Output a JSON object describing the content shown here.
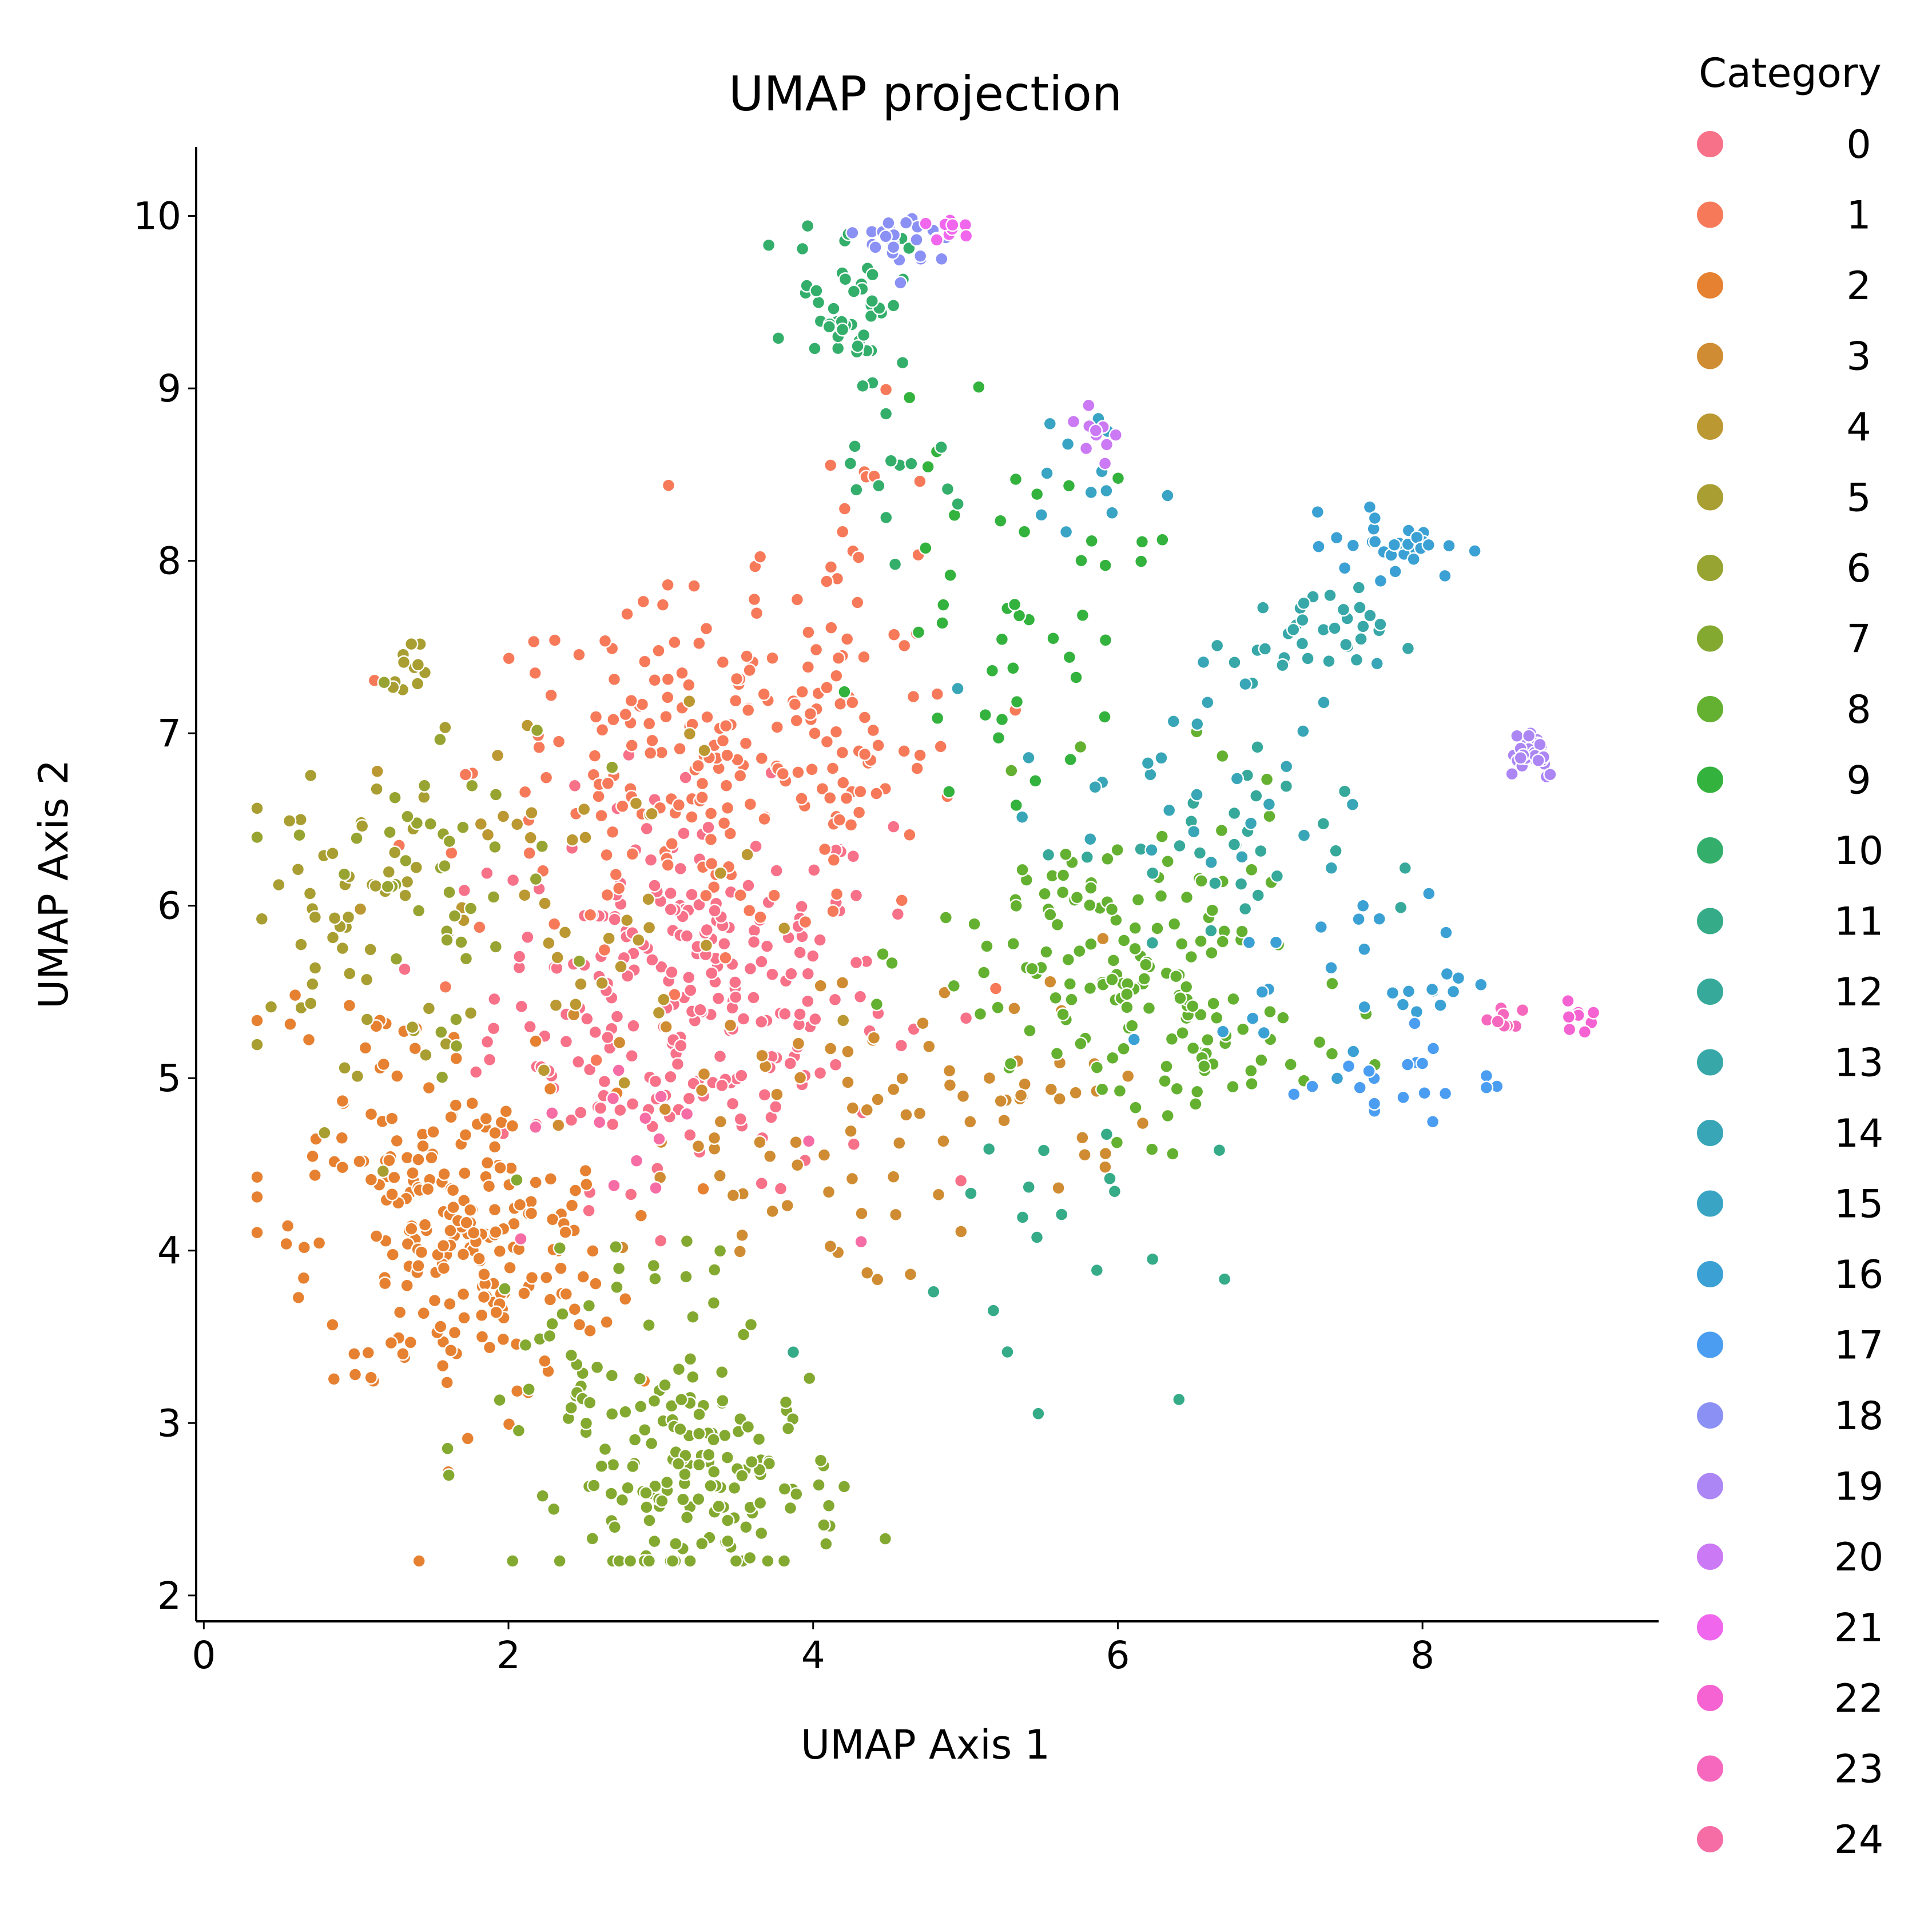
{
  "chart_data": {
    "type": "scatter",
    "title": "UMAP projection",
    "xlabel": "UMAP Axis 1",
    "ylabel": "UMAP Axis 2",
    "xlim": [
      -0.05,
      9.55
    ],
    "ylim": [
      1.85,
      10.4
    ],
    "xticks": [
      0,
      2,
      4,
      6,
      8
    ],
    "yticks": [
      2,
      3,
      4,
      5,
      6,
      7,
      8,
      9,
      10
    ],
    "grid": false,
    "legend": {
      "title": "Category",
      "placement": "right",
      "entries": [
        "0",
        "1",
        "2",
        "3",
        "4",
        "5",
        "6",
        "7",
        "8",
        "9",
        "10",
        "11",
        "12",
        "13",
        "14",
        "15",
        "16",
        "17",
        "18",
        "19",
        "20",
        "21",
        "22",
        "23",
        "24"
      ]
    },
    "colors": [
      "#f77189",
      "#f67a5a",
      "#e68132",
      "#d08c32",
      "#bb9832",
      "#a89e31",
      "#97a431",
      "#84a931",
      "#64b131",
      "#33b23d",
      "#34ae6b",
      "#35ab88",
      "#36a99b",
      "#37a7a8",
      "#38a6b6",
      "#39a4c4",
      "#3ba1d4",
      "#4a9df0",
      "#8b91f4",
      "#ac86f4",
      "#cb79f4",
      "#f066ec",
      "#f563d3",
      "#f668be",
      "#f66da6"
    ],
    "clusters": [
      {
        "category": 0,
        "center": [
          3.2,
          5.5
        ],
        "spread": [
          0.65,
          0.55
        ],
        "n": 260
      },
      {
        "category": 1,
        "center": [
          3.4,
          6.8
        ],
        "spread": [
          0.8,
          0.5
        ],
        "n": 220
      },
      {
        "category": 1,
        "center": [
          4.3,
          7.8
        ],
        "spread": [
          0.3,
          0.5
        ],
        "n": 25
      },
      {
        "category": 2,
        "center": [
          1.7,
          4.0
        ],
        "spread": [
          0.5,
          0.45
        ],
        "n": 200
      },
      {
        "category": 2,
        "center": [
          1.2,
          4.9
        ],
        "spread": [
          0.45,
          0.4
        ],
        "n": 45
      },
      {
        "category": 3,
        "center": [
          3.6,
          4.6
        ],
        "spread": [
          0.7,
          0.4
        ],
        "n": 55
      },
      {
        "category": 3,
        "center": [
          5.2,
          5.0
        ],
        "spread": [
          0.5,
          0.4
        ],
        "n": 40
      },
      {
        "category": 4,
        "center": [
          2.6,
          5.9
        ],
        "spread": [
          0.7,
          0.6
        ],
        "n": 45
      },
      {
        "category": 5,
        "center": [
          1.0,
          5.9
        ],
        "spread": [
          0.35,
          0.55
        ],
        "n": 55
      },
      {
        "category": 5,
        "center": [
          1.35,
          7.4
        ],
        "spread": [
          0.07,
          0.07
        ],
        "n": 12
      },
      {
        "category": 6,
        "center": [
          1.5,
          6.2
        ],
        "spread": [
          0.45,
          0.5
        ],
        "n": 45
      },
      {
        "category": 7,
        "center": [
          3.3,
          2.65
        ],
        "spread": [
          0.45,
          0.3
        ],
        "n": 150
      },
      {
        "category": 7,
        "center": [
          2.6,
          3.4
        ],
        "spread": [
          0.5,
          0.45
        ],
        "n": 45
      },
      {
        "category": 8,
        "center": [
          6.0,
          5.7
        ],
        "spread": [
          0.6,
          0.45
        ],
        "n": 120
      },
      {
        "category": 8,
        "center": [
          6.5,
          5.2
        ],
        "spread": [
          0.4,
          0.3
        ],
        "n": 50
      },
      {
        "category": 9,
        "center": [
          5.3,
          7.7
        ],
        "spread": [
          0.45,
          0.5
        ],
        "n": 45
      },
      {
        "category": 10,
        "center": [
          4.25,
          9.55
        ],
        "spread": [
          0.18,
          0.22
        ],
        "n": 45
      },
      {
        "category": 10,
        "center": [
          4.5,
          8.5
        ],
        "spread": [
          0.3,
          0.35
        ],
        "n": 15
      },
      {
        "category": 11,
        "center": [
          5.4,
          4.1
        ],
        "spread": [
          0.6,
          0.45
        ],
        "n": 20
      },
      {
        "category": 12,
        "center": [
          6.6,
          6.3
        ],
        "spread": [
          0.45,
          0.3
        ],
        "n": 30
      },
      {
        "category": 13,
        "center": [
          7.25,
          7.55
        ],
        "spread": [
          0.25,
          0.14
        ],
        "n": 35
      },
      {
        "category": 14,
        "center": [
          6.5,
          6.7
        ],
        "spread": [
          0.6,
          0.35
        ],
        "n": 30
      },
      {
        "category": 15,
        "center": [
          5.7,
          8.4
        ],
        "spread": [
          0.3,
          0.25
        ],
        "n": 12
      },
      {
        "category": 16,
        "center": [
          7.85,
          8.1
        ],
        "spread": [
          0.22,
          0.1
        ],
        "n": 30
      },
      {
        "category": 16,
        "center": [
          7.6,
          5.6
        ],
        "spread": [
          0.45,
          0.25
        ],
        "n": 30
      },
      {
        "category": 17,
        "center": [
          7.8,
          5.0
        ],
        "spread": [
          0.35,
          0.15
        ],
        "n": 20
      },
      {
        "category": 18,
        "center": [
          4.65,
          9.85
        ],
        "spread": [
          0.15,
          0.1
        ],
        "n": 25
      },
      {
        "category": 19,
        "center": [
          8.7,
          6.9
        ],
        "spread": [
          0.1,
          0.08
        ],
        "n": 30
      },
      {
        "category": 20,
        "center": [
          5.85,
          8.7
        ],
        "spread": [
          0.08,
          0.12
        ],
        "n": 10
      },
      {
        "category": 21,
        "center": [
          4.9,
          9.93
        ],
        "spread": [
          0.08,
          0.05
        ],
        "n": 10
      },
      {
        "category": 22,
        "center": [
          9.05,
          5.37
        ],
        "spread": [
          0.05,
          0.04
        ],
        "n": 10
      },
      {
        "category": 23,
        "center": [
          8.55,
          5.33
        ],
        "spread": [
          0.1,
          0.05
        ],
        "n": 10
      },
      {
        "category": 24,
        "center": [
          2.9,
          4.7
        ],
        "spread": [
          0.5,
          0.3
        ],
        "n": 15
      }
    ]
  }
}
